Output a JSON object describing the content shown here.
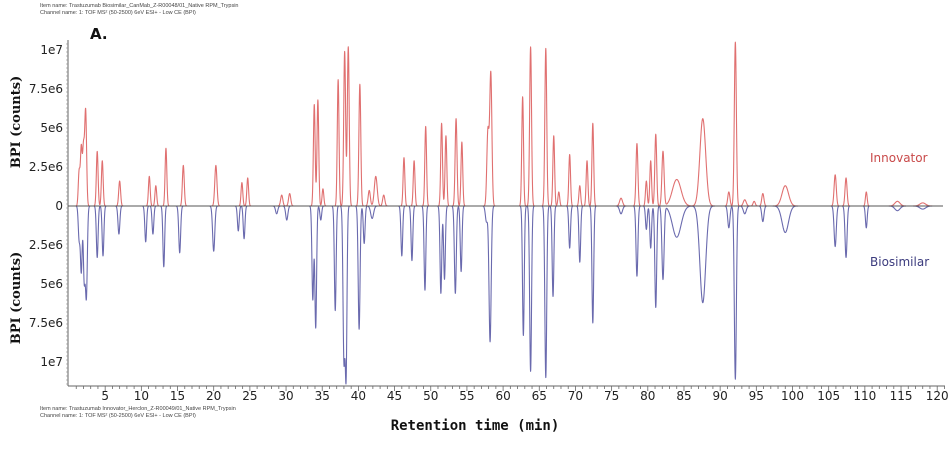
{
  "header": {
    "item_name": "Item name: Trastuzumab Biosimilar_CanMab_Z-R00048/01_Native RPM_Trypsin",
    "channel_name": "Channel name: 1: TOF MS² (50-2500) 6eV ESI+ - Low CE (BPI)"
  },
  "footer": {
    "item_name": "Item name: Trastuzumab Innovator_Herclon_Z-R00049/01_Native RPM_Trypsin",
    "channel_name": "Channel name: 1: TOF MS² (50-2500) 6eV ESI+ - Low CE (BPI)"
  },
  "chart_data": {
    "type": "line",
    "style": "mirror plot",
    "panel_label": "A.",
    "xlabel": "Retention time (min)",
    "ylabel_top": "BPI (counts)",
    "ylabel_bottom": "BPI (counts)",
    "xlim": [
      0,
      121
    ],
    "ylim": [
      -11500000,
      11500000
    ],
    "x_ticks": [
      "5",
      "10",
      "15",
      "20",
      "25",
      "30",
      "35",
      "40",
      "45",
      "50",
      "55",
      "60",
      "65",
      "70",
      "75",
      "80",
      "85",
      "90",
      "95",
      "100",
      "105",
      "110",
      "115",
      "120"
    ],
    "y_ticks_top": [
      "1e7",
      "7.5e6",
      "5e6",
      "2.5e6",
      "0"
    ],
    "y_ticks_bottom": [
      "2.5e6",
      "5e6",
      "7.5e6",
      "1e7"
    ],
    "grid": false,
    "peak_format": "[retention_time_min, height_millions_counts, width_min]",
    "series": [
      {
        "name": "Innovator",
        "color": "#e07070",
        "label_color": "#c94a4a",
        "direction": "up",
        "peaks": [
          [
            1.4,
            2.2,
            0.12
          ],
          [
            1.7,
            3.7,
            0.12
          ],
          [
            2.0,
            3.6,
            0.12
          ],
          [
            2.3,
            6.1,
            0.13
          ],
          [
            3.9,
            3.5,
            0.12
          ],
          [
            4.6,
            2.9,
            0.12
          ],
          [
            7.0,
            1.6,
            0.13
          ],
          [
            11.1,
            1.9,
            0.12
          ],
          [
            12.0,
            1.3,
            0.12
          ],
          [
            13.4,
            3.7,
            0.12
          ],
          [
            15.8,
            2.6,
            0.13
          ],
          [
            20.3,
            2.6,
            0.15
          ],
          [
            23.9,
            1.5,
            0.12
          ],
          [
            24.7,
            1.8,
            0.12
          ],
          [
            29.4,
            0.7,
            0.15
          ],
          [
            30.5,
            0.8,
            0.15
          ],
          [
            33.9,
            6.5,
            0.12
          ],
          [
            34.4,
            6.8,
            0.12
          ],
          [
            35.1,
            1.1,
            0.12
          ],
          [
            37.2,
            8.1,
            0.12
          ],
          [
            38.1,
            9.9,
            0.13
          ],
          [
            38.6,
            10.2,
            0.13
          ],
          [
            40.2,
            7.8,
            0.13
          ],
          [
            41.5,
            1.0,
            0.15
          ],
          [
            42.4,
            1.9,
            0.2
          ],
          [
            43.5,
            0.7,
            0.15
          ],
          [
            46.3,
            3.1,
            0.12
          ],
          [
            47.7,
            2.9,
            0.12
          ],
          [
            49.3,
            5.1,
            0.12
          ],
          [
            51.5,
            5.3,
            0.12
          ],
          [
            52.1,
            4.5,
            0.12
          ],
          [
            53.5,
            5.6,
            0.13
          ],
          [
            54.3,
            4.1,
            0.12
          ],
          [
            57.9,
            4.8,
            0.15
          ],
          [
            58.3,
            8.5,
            0.15
          ],
          [
            62.7,
            7.0,
            0.12
          ],
          [
            63.8,
            10.2,
            0.13
          ],
          [
            65.9,
            10.1,
            0.13
          ],
          [
            67.0,
            4.5,
            0.12
          ],
          [
            67.7,
            0.9,
            0.12
          ],
          [
            69.2,
            3.3,
            0.12
          ],
          [
            70.6,
            1.3,
            0.12
          ],
          [
            71.6,
            2.9,
            0.12
          ],
          [
            72.4,
            5.3,
            0.12
          ],
          [
            76.3,
            0.5,
            0.2
          ],
          [
            78.5,
            4.0,
            0.13
          ],
          [
            79.8,
            1.6,
            0.12
          ],
          [
            80.4,
            2.9,
            0.12
          ],
          [
            81.1,
            4.6,
            0.13
          ],
          [
            82.1,
            3.5,
            0.15
          ],
          [
            84.0,
            1.7,
            0.6
          ],
          [
            87.6,
            5.6,
            0.4
          ],
          [
            91.2,
            0.9,
            0.15
          ],
          [
            92.1,
            10.5,
            0.14
          ],
          [
            93.4,
            0.4,
            0.2
          ],
          [
            94.7,
            0.3,
            0.15
          ],
          [
            95.9,
            0.8,
            0.15
          ],
          [
            99.0,
            1.3,
            0.45
          ],
          [
            105.9,
            2.0,
            0.15
          ],
          [
            107.4,
            1.8,
            0.14
          ],
          [
            110.2,
            0.9,
            0.12
          ],
          [
            114.5,
            0.3,
            0.35
          ],
          [
            118.0,
            0.2,
            0.4
          ]
        ]
      },
      {
        "name": "Biosimilar",
        "color": "#6a6aae",
        "label_color": "#3c3c7e",
        "direction": "down",
        "peaks": [
          [
            1.4,
            2.1,
            0.12
          ],
          [
            1.7,
            4.2,
            0.12
          ],
          [
            2.1,
            4.6,
            0.12
          ],
          [
            2.4,
            5.8,
            0.13
          ],
          [
            3.9,
            3.3,
            0.12
          ],
          [
            4.7,
            3.2,
            0.12
          ],
          [
            6.9,
            1.8,
            0.13
          ],
          [
            10.6,
            2.3,
            0.12
          ],
          [
            11.6,
            1.8,
            0.12
          ],
          [
            13.1,
            3.9,
            0.12
          ],
          [
            15.3,
            3.0,
            0.13
          ],
          [
            20.0,
            2.9,
            0.15
          ],
          [
            23.4,
            1.6,
            0.12
          ],
          [
            24.2,
            2.1,
            0.12
          ],
          [
            28.7,
            0.5,
            0.15
          ],
          [
            30.1,
            0.9,
            0.15
          ],
          [
            33.7,
            6.0,
            0.12
          ],
          [
            34.1,
            7.8,
            0.12
          ],
          [
            34.8,
            0.9,
            0.12
          ],
          [
            36.8,
            6.7,
            0.12
          ],
          [
            38.0,
            9.7,
            0.13
          ],
          [
            38.3,
            10.6,
            0.12
          ],
          [
            40.1,
            7.9,
            0.13
          ],
          [
            40.8,
            2.4,
            0.12
          ],
          [
            41.9,
            0.8,
            0.2
          ],
          [
            46.0,
            3.2,
            0.12
          ],
          [
            47.4,
            3.5,
            0.12
          ],
          [
            49.2,
            5.4,
            0.12
          ],
          [
            51.4,
            5.6,
            0.12
          ],
          [
            51.9,
            4.7,
            0.12
          ],
          [
            53.4,
            5.6,
            0.13
          ],
          [
            54.2,
            4.2,
            0.12
          ],
          [
            57.7,
            1.0,
            0.15
          ],
          [
            58.2,
            8.7,
            0.15
          ],
          [
            62.8,
            8.3,
            0.12
          ],
          [
            63.8,
            10.6,
            0.13
          ],
          [
            65.9,
            11.0,
            0.13
          ],
          [
            66.9,
            5.8,
            0.12
          ],
          [
            69.2,
            2.7,
            0.12
          ],
          [
            70.6,
            3.6,
            0.12
          ],
          [
            72.4,
            7.5,
            0.12
          ],
          [
            76.3,
            0.5,
            0.2
          ],
          [
            78.5,
            4.5,
            0.13
          ],
          [
            79.8,
            1.5,
            0.12
          ],
          [
            80.4,
            2.7,
            0.12
          ],
          [
            81.1,
            6.5,
            0.13
          ],
          [
            82.1,
            4.7,
            0.15
          ],
          [
            84.0,
            2.0,
            0.6
          ],
          [
            87.6,
            6.2,
            0.4
          ],
          [
            91.2,
            1.4,
            0.15
          ],
          [
            92.1,
            11.1,
            0.14
          ],
          [
            93.4,
            0.5,
            0.2
          ],
          [
            95.9,
            1.0,
            0.15
          ],
          [
            99.0,
            1.7,
            0.45
          ],
          [
            105.9,
            2.6,
            0.15
          ],
          [
            107.4,
            3.3,
            0.14
          ],
          [
            110.2,
            1.4,
            0.12
          ],
          [
            114.5,
            0.3,
            0.35
          ],
          [
            118.0,
            0.2,
            0.4
          ]
        ]
      }
    ]
  }
}
